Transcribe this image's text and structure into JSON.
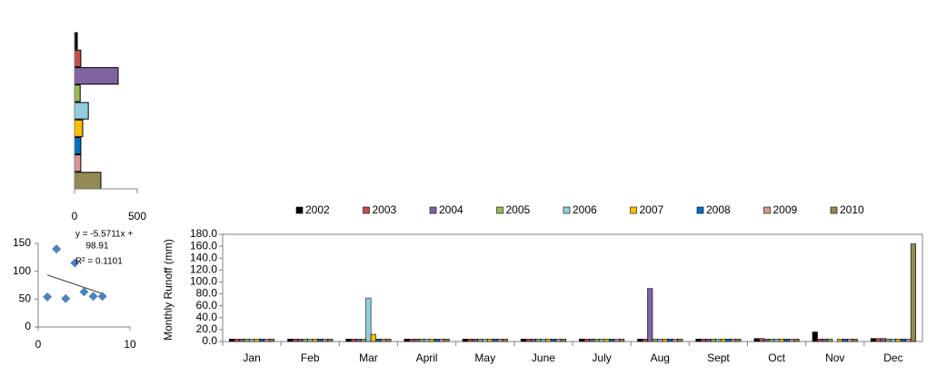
{
  "chart_data": [
    {
      "type": "barh",
      "categories": [
        null,
        null,
        null,
        null,
        null,
        null,
        null,
        null,
        null
      ],
      "values": [
        22,
        50,
        348,
        45,
        110,
        65,
        50,
        50,
        210
      ],
      "colors": [
        "#000000",
        "#c0504d",
        "#8064a2",
        "#9bbb59",
        "#93cddd",
        "#ffc000",
        "#0070c0",
        "#d99694",
        "#948a54"
      ],
      "xlim": [
        0,
        500
      ],
      "xticks": [
        0,
        500
      ]
    },
    {
      "type": "scatter",
      "x": [
        1,
        2,
        3,
        4,
        5,
        6,
        7
      ],
      "values": [
        54,
        140,
        51,
        115,
        63,
        55,
        55
      ],
      "color": "#4f81bd",
      "trendline": {
        "slope": -5.5711,
        "intercept": 98.91
      },
      "annotations": [
        "y = -5.5711x +",
        "98.91",
        "R² = 0.1101"
      ],
      "xlim": [
        0,
        10
      ],
      "xticks": [
        0,
        10
      ],
      "ylim": [
        0,
        150
      ],
      "yticks": [
        0,
        50,
        100,
        150
      ]
    },
    {
      "type": "bar",
      "ylabel": "Monthly  Runoff (mm)",
      "categories": [
        "Jan",
        "Feb",
        "Mar",
        "April",
        "May",
        "June",
        "July",
        "Aug",
        "Sept",
        "Oct",
        "Nov",
        "Dec"
      ],
      "series": [
        {
          "name": "2002",
          "color": "#000000",
          "values": [
            4,
            4,
            4,
            4,
            4,
            4,
            4,
            4,
            4,
            5,
            16,
            5
          ]
        },
        {
          "name": "2003",
          "color": "#c0504d",
          "values": [
            4,
            4,
            4,
            4,
            4,
            4,
            4,
            4,
            4,
            5,
            4,
            5
          ]
        },
        {
          "name": "2004",
          "color": "#8064a2",
          "values": [
            4,
            4,
            4,
            4,
            4,
            4,
            4,
            89,
            4,
            4,
            4,
            5
          ]
        },
        {
          "name": "2005",
          "color": "#9bbb59",
          "values": [
            4,
            4,
            4,
            4,
            4,
            4,
            4,
            4,
            4,
            4,
            4,
            4
          ]
        },
        {
          "name": "2006",
          "color": "#93cddd",
          "values": [
            4,
            4,
            73,
            4,
            4,
            4,
            4,
            4,
            4,
            4,
            0,
            4
          ]
        },
        {
          "name": "2007",
          "color": "#ffc000",
          "values": [
            4,
            4,
            12,
            4,
            4,
            4,
            4,
            4,
            4,
            4,
            4,
            4
          ]
        },
        {
          "name": "2008",
          "color": "#0070c0",
          "values": [
            4,
            4,
            4,
            4,
            4,
            4,
            4,
            4,
            4,
            4,
            4,
            4
          ]
        },
        {
          "name": "2009",
          "color": "#d99694",
          "values": [
            4,
            4,
            4,
            4,
            4,
            4,
            4,
            4,
            4,
            4,
            4,
            4
          ]
        },
        {
          "name": "2010",
          "color": "#948a54",
          "values": [
            4,
            4,
            4,
            4,
            4,
            4,
            4,
            4,
            4,
            4,
            4,
            164
          ]
        }
      ],
      "ylim": [
        0,
        180
      ],
      "yticks": [
        {
          "value": 0,
          "label": "0.0"
        },
        {
          "value": 20,
          "label": "20.0"
        },
        {
          "value": 40,
          "label": "40.0"
        },
        {
          "value": 60,
          "label": "60.0"
        },
        {
          "value": 80,
          "label": "80.0"
        },
        {
          "value": 100,
          "label": "100.0"
        },
        {
          "value": 120,
          "label": "120.0"
        },
        {
          "value": 140,
          "label": "140.0"
        },
        {
          "value": 160,
          "label": "160.0"
        },
        {
          "value": 180,
          "label": "180.0"
        }
      ],
      "legend": "top"
    }
  ]
}
